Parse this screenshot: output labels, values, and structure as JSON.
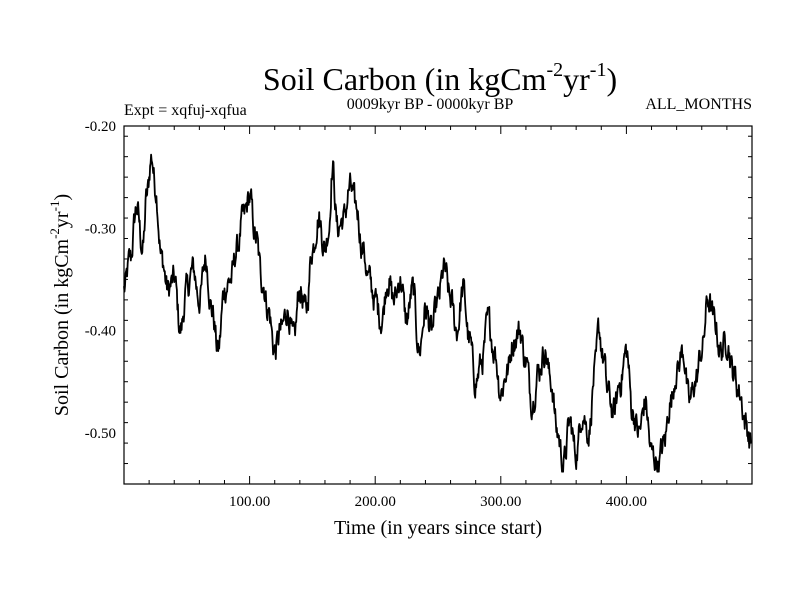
{
  "chart_data": {
    "type": "line",
    "title": "Soil Carbon (in kgCm",
    "title_sup1": "-2",
    "title_mid": "yr",
    "title_sup2": "-1",
    "title_end": ")",
    "subtitle_left": "Expt = xqfuj-xqfua",
    "subtitle_center": "0009kyr BP - 0000kyr BP",
    "subtitle_right": "ALL_MONTHS",
    "xlabel": "Time (in years since start)",
    "ylabel": "Soil Carbon (in kgCm",
    "ylabel_sup1": "-2",
    "ylabel_mid": "yr",
    "ylabel_sup2": "-1",
    "ylabel_end": ")",
    "xlim": [
      0,
      500
    ],
    "ylim": [
      -0.55,
      -0.2
    ],
    "xticks": [
      100,
      200,
      300,
      400
    ],
    "xtick_labels": [
      "100.00",
      "200.00",
      "300.00",
      "400.00"
    ],
    "yticks": [
      -0.2,
      -0.3,
      -0.4,
      -0.5
    ],
    "ytick_labels": [
      "-0.20",
      "-0.30",
      "-0.40",
      "-0.50"
    ],
    "series": [
      {
        "name": "Soil Carbon",
        "color": "#000000",
        "x": [
          0,
          5,
          10,
          15,
          18,
          22,
          25,
          30,
          35,
          40,
          45,
          50,
          55,
          60,
          65,
          70,
          75,
          80,
          85,
          90,
          95,
          100,
          105,
          110,
          115,
          120,
          125,
          130,
          135,
          140,
          145,
          150,
          155,
          160,
          163,
          166,
          170,
          175,
          180,
          185,
          190,
          195,
          200,
          205,
          210,
          215,
          220,
          225,
          230,
          235,
          240,
          245,
          250,
          255,
          260,
          265,
          270,
          275,
          280,
          285,
          290,
          295,
          300,
          305,
          310,
          315,
          320,
          325,
          330,
          335,
          340,
          345,
          350,
          355,
          360,
          365,
          370,
          375,
          378,
          382,
          385,
          390,
          395,
          400,
          405,
          410,
          415,
          420,
          425,
          430,
          435,
          440,
          445,
          450,
          455,
          460,
          465,
          470,
          475,
          480,
          485,
          490,
          495,
          499
        ],
        "y": [
          -0.36,
          -0.33,
          -0.28,
          -0.32,
          -0.27,
          -0.23,
          -0.26,
          -0.33,
          -0.36,
          -0.35,
          -0.4,
          -0.36,
          -0.34,
          -0.37,
          -0.33,
          -0.38,
          -0.42,
          -0.36,
          -0.35,
          -0.32,
          -0.29,
          -0.27,
          -0.31,
          -0.35,
          -0.38,
          -0.42,
          -0.4,
          -0.38,
          -0.41,
          -0.36,
          -0.38,
          -0.32,
          -0.29,
          -0.32,
          -0.3,
          -0.24,
          -0.3,
          -0.29,
          -0.26,
          -0.28,
          -0.32,
          -0.35,
          -0.37,
          -0.39,
          -0.35,
          -0.37,
          -0.35,
          -0.39,
          -0.36,
          -0.42,
          -0.38,
          -0.4,
          -0.37,
          -0.34,
          -0.37,
          -0.4,
          -0.36,
          -0.41,
          -0.45,
          -0.43,
          -0.39,
          -0.42,
          -0.46,
          -0.44,
          -0.41,
          -0.4,
          -0.43,
          -0.47,
          -0.44,
          -0.42,
          -0.45,
          -0.5,
          -0.53,
          -0.49,
          -0.52,
          -0.48,
          -0.5,
          -0.44,
          -0.4,
          -0.43,
          -0.46,
          -0.48,
          -0.45,
          -0.42,
          -0.48,
          -0.5,
          -0.47,
          -0.52,
          -0.53,
          -0.51,
          -0.47,
          -0.44,
          -0.42,
          -0.47,
          -0.45,
          -0.42,
          -0.37,
          -0.39,
          -0.42,
          -0.41,
          -0.44,
          -0.46,
          -0.49,
          -0.51
        ]
      }
    ]
  }
}
